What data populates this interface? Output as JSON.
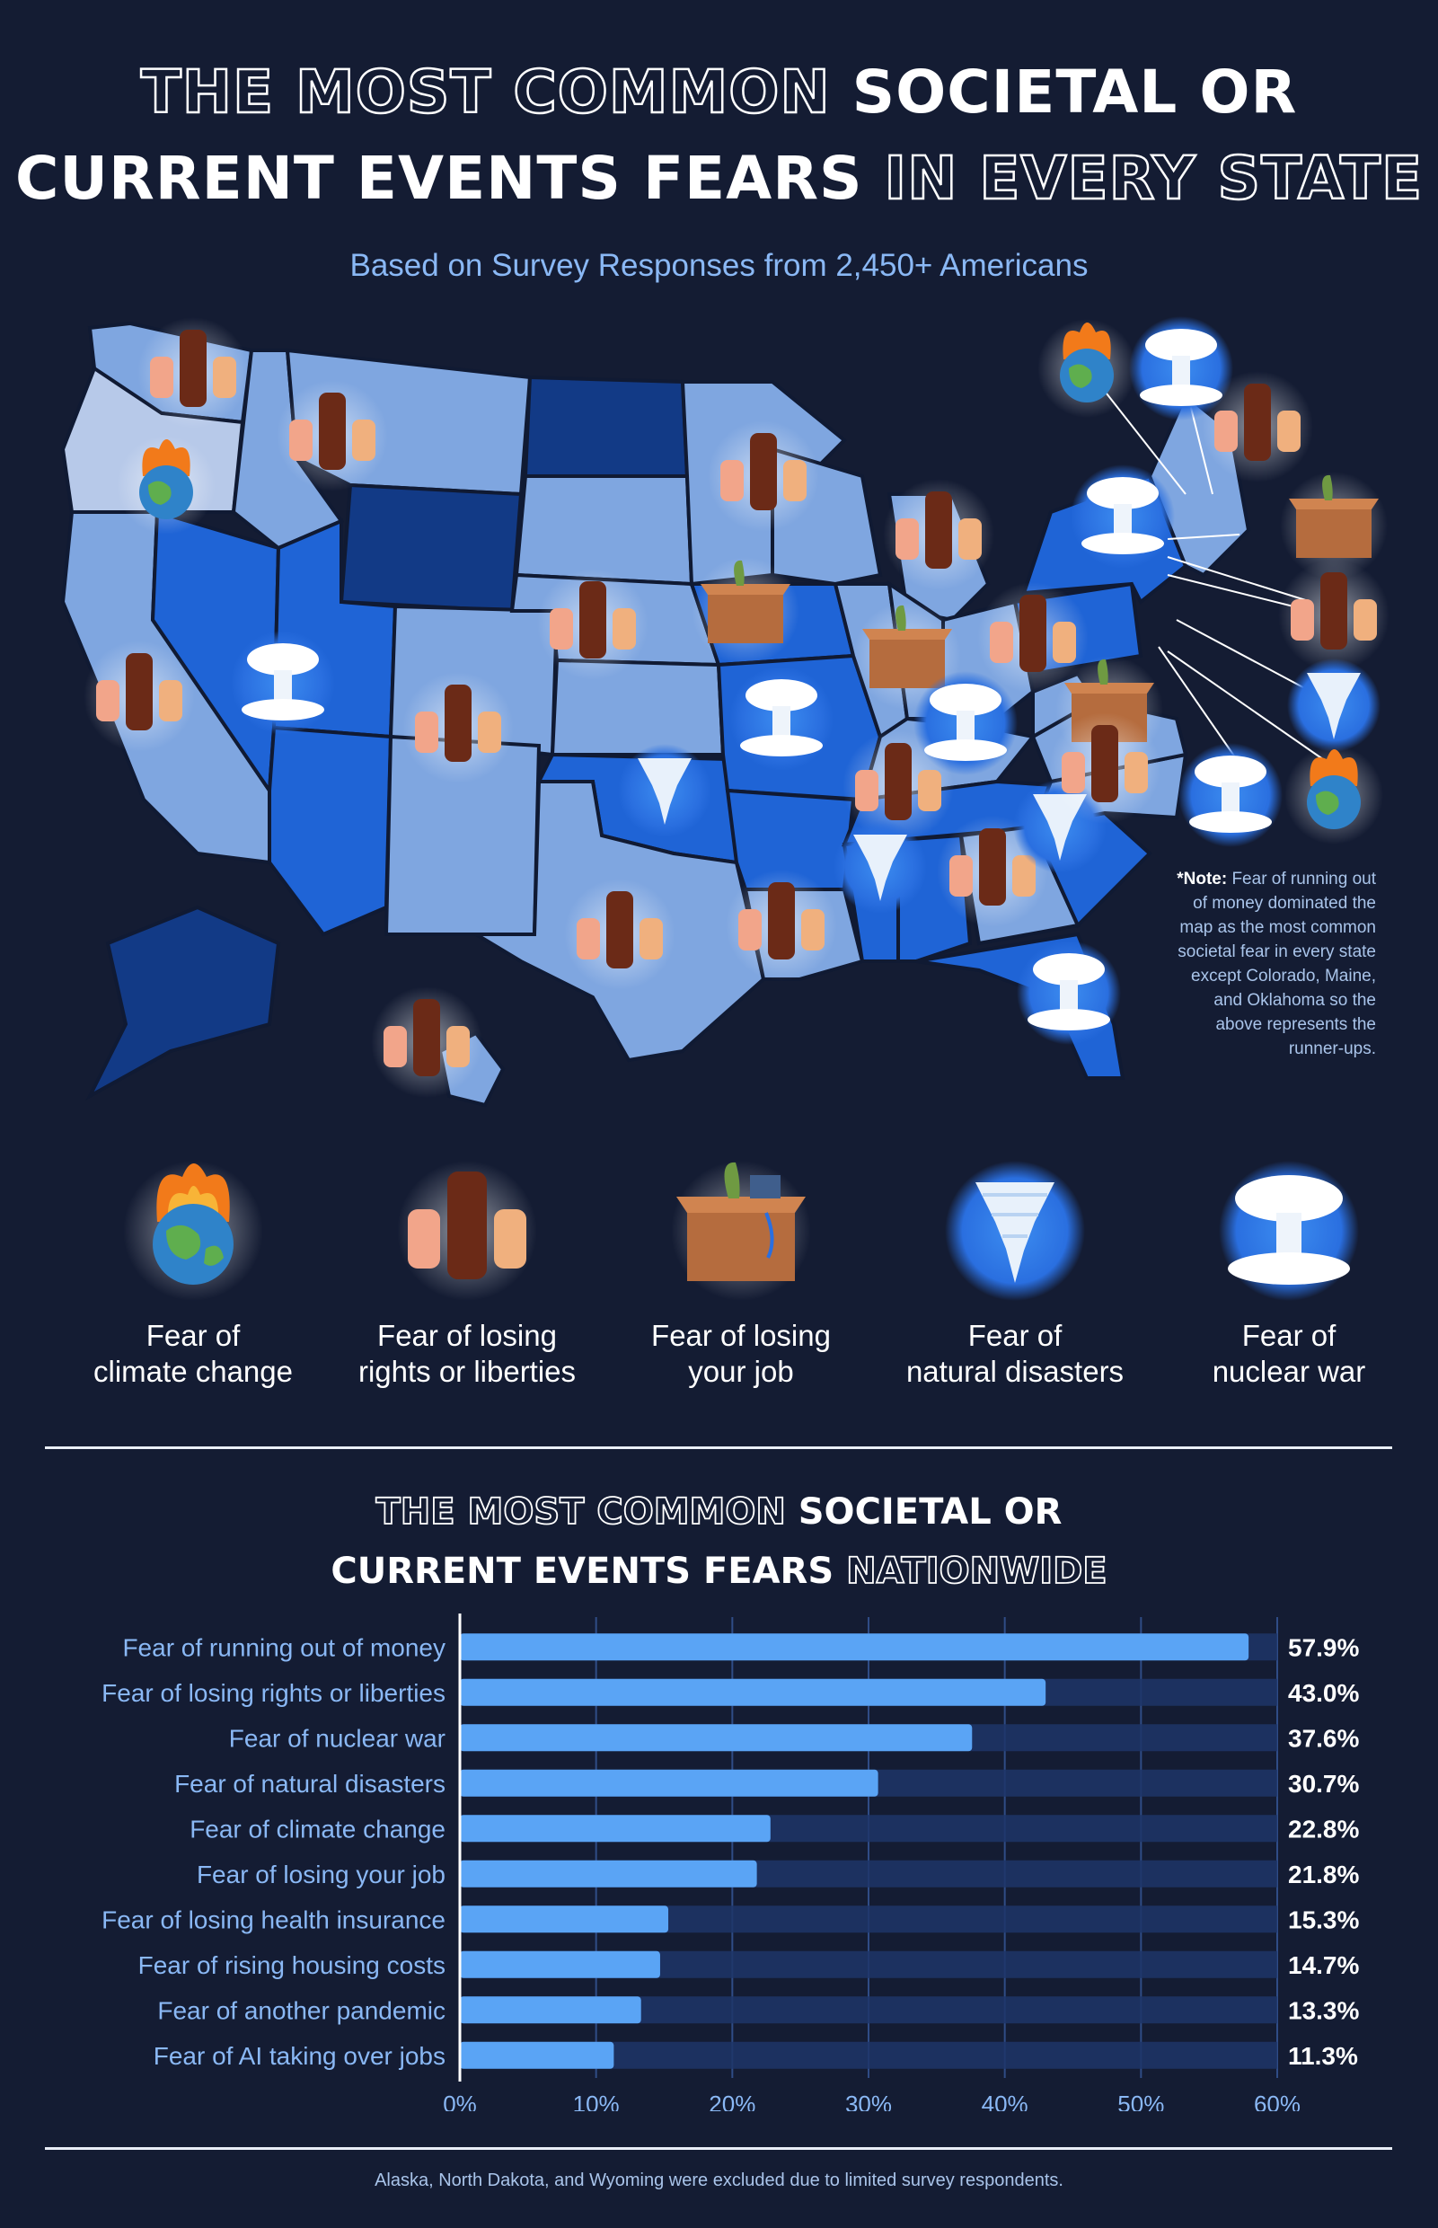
{
  "header": {
    "title_line1_outline": "The most common",
    "title_line1_solid": "Societal or",
    "title_line2_solid": "current events fears",
    "title_line2_outline": "in every state",
    "subtitle": "Based on Survey Responses from 2,450+ Americans"
  },
  "map": {
    "note_label": "*Note:",
    "note_text": "Fear of running out of money dominated the map as the most common societal fear in every state except Colorado, Maine, and Oklahoma so the above represents the runner-ups.",
    "colors": {
      "state_light": "#7fa6e0",
      "state_mid": "#1f64d6",
      "state_dark": "#123a86",
      "state_pale": "#b7c9e9",
      "border": "#101a33"
    }
  },
  "legend": [
    {
      "icon": "burning-globe-icon",
      "label_line1": "Fear of",
      "label_line2": "climate change"
    },
    {
      "icon": "raised-fists-icon",
      "label_line1": "Fear of losing",
      "label_line2": "rights or liberties"
    },
    {
      "icon": "moving-box-icon",
      "label_line1": "Fear of losing",
      "label_line2": "your job"
    },
    {
      "icon": "tornado-icon",
      "label_line1": "Fear of",
      "label_line2": "natural disasters"
    },
    {
      "icon": "mushroom-cloud-icon",
      "label_line1": "Fear of",
      "label_line2": "nuclear war"
    }
  ],
  "nationwide": {
    "title_line1_outline": "The most common",
    "title_line1_solid": "Societal or",
    "title_line2_solid": "current events fears",
    "title_line2_outline": "nationwide"
  },
  "chart_data": {
    "type": "bar",
    "orientation": "horizontal",
    "categories": [
      "Fear of running out of money",
      "Fear of losing rights or liberties",
      "Fear of nuclear war",
      "Fear of natural disasters",
      "Fear of climate change",
      "Fear of losing your job",
      "Fear of losing health insurance",
      "Fear of rising housing costs",
      "Fear of another pandemic",
      "Fear of AI taking over jobs"
    ],
    "values": [
      57.9,
      43.0,
      37.6,
      30.7,
      22.8,
      21.8,
      15.3,
      14.7,
      13.3,
      11.3
    ],
    "value_labels": [
      "57.9%",
      "43.0%",
      "37.6%",
      "30.7%",
      "22.8%",
      "21.8%",
      "15.3%",
      "14.7%",
      "13.3%",
      "11.3%"
    ],
    "xlim": [
      0,
      60
    ],
    "xticks": [
      0,
      10,
      20,
      30,
      40,
      50,
      60
    ],
    "xtick_labels": [
      "0%",
      "10%",
      "20%",
      "30%",
      "40%",
      "50%",
      "60%"
    ],
    "grid": true,
    "colors": {
      "bar": "#5aa4f5",
      "track": "#1d3569",
      "text": "#8ab8f5"
    }
  },
  "footer": "Alaska, North Dakota, and Wyoming were excluded due to limited survey respondents."
}
